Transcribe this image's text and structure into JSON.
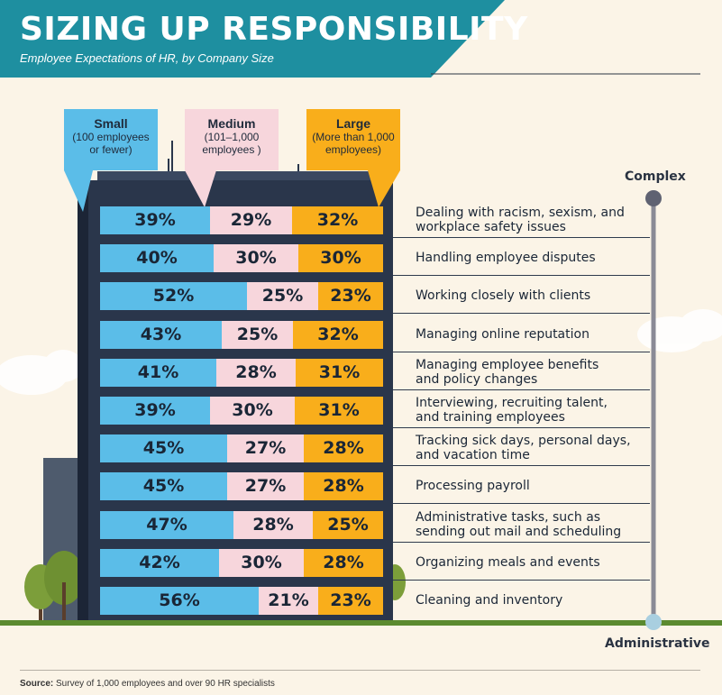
{
  "header": {
    "title": "SIZING UP RESPONSIBILITY",
    "subtitle": "Employee Expectations of HR, by Company Size"
  },
  "legend": {
    "small": {
      "title": "Small",
      "sub1": "(100 employees",
      "sub2": "or fewer)"
    },
    "medium": {
      "title": "Medium",
      "sub1": "(101–1,000",
      "sub2": "employees )"
    },
    "large": {
      "title": "Large",
      "sub1": "(More than 1,000",
      "sub2": "employees)"
    }
  },
  "axis": {
    "top": "Complex",
    "bottom": "Administrative"
  },
  "source": {
    "label": "Source:",
    "text": " Survey of 1,000 employees and over 90 HR specialists"
  },
  "colors": {
    "small": "#5bbde8",
    "medium": "#f7d6dc",
    "large": "#f9ae1b",
    "header": "#1e8fa0",
    "building": "#2a364b"
  },
  "chart_data": {
    "type": "bar",
    "stacked": true,
    "orientation": "horizontal",
    "categories": [
      "Dealing with racism, sexism, and workplace safety issues",
      "Handling employee disputes",
      "Working closely with clients",
      "Managing online reputation",
      "Managing employee benefits and policy changes",
      "Interviewing, recruiting talent, and training employees",
      "Tracking sick days, personal days, and vacation time",
      "Processing payroll",
      "Administrative tasks, such as sending out mail and scheduling",
      "Organizing meals and events",
      "Cleaning and inventory"
    ],
    "series": [
      {
        "name": "Small",
        "values": [
          39,
          40,
          52,
          43,
          41,
          39,
          45,
          45,
          47,
          42,
          56
        ]
      },
      {
        "name": "Medium",
        "values": [
          29,
          30,
          25,
          25,
          28,
          30,
          27,
          27,
          28,
          30,
          21
        ]
      },
      {
        "name": "Large",
        "values": [
          32,
          30,
          23,
          32,
          31,
          31,
          28,
          28,
          25,
          28,
          23
        ]
      }
    ],
    "labels": [
      [
        "Dealing with racism, sexism, and",
        "workplace safety issues"
      ],
      [
        "Handling employee disputes"
      ],
      [
        "Working closely with clients"
      ],
      [
        "Managing online reputation"
      ],
      [
        "Managing employee benefits",
        "and policy changes"
      ],
      [
        "Interviewing, recruiting talent,",
        "and training employees"
      ],
      [
        "Tracking sick days, personal days,",
        "and vacation time"
      ],
      [
        "Processing payroll"
      ],
      [
        "Administrative tasks, such as",
        "sending out mail and scheduling"
      ],
      [
        "Organizing meals and events"
      ],
      [
        "Cleaning and inventory"
      ]
    ],
    "value_suffix": "%",
    "legend_position": "top"
  }
}
